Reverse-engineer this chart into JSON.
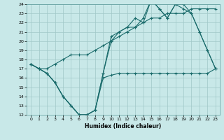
{
  "xlabel": "Humidex (Indice chaleur)",
  "xlim": [
    0,
    23
  ],
  "ylim": [
    12,
    24
  ],
  "yticks": [
    12,
    13,
    14,
    15,
    16,
    17,
    18,
    19,
    20,
    21,
    22,
    23,
    24
  ],
  "xticks": [
    0,
    1,
    2,
    3,
    4,
    5,
    6,
    7,
    8,
    9,
    10,
    11,
    12,
    13,
    14,
    15,
    16,
    17,
    18,
    19,
    20,
    21,
    22,
    23
  ],
  "bg_color": "#c8e8e8",
  "line_color": "#1a6b6b",
  "grid_color": "#a0c8c8",
  "line1_x": [
    0,
    1,
    2,
    3,
    4,
    5,
    6,
    7,
    8,
    9,
    10,
    11,
    12,
    13,
    14,
    15,
    16,
    17,
    18,
    19,
    20,
    21,
    22,
    23
  ],
  "line1_y": [
    17.5,
    17.0,
    16.5,
    15.5,
    14.0,
    13.0,
    12.0,
    12.0,
    12.5,
    16.0,
    16.3,
    16.5,
    16.5,
    16.5,
    16.5,
    16.5,
    16.5,
    16.5,
    16.5,
    16.5,
    16.5,
    16.5,
    16.5,
    17.0
  ],
  "line2_x": [
    0,
    1,
    2,
    3,
    4,
    5,
    6,
    7,
    8,
    9,
    10,
    11,
    12,
    13,
    14,
    15,
    16,
    17,
    18,
    19,
    20,
    21,
    22,
    23
  ],
  "line2_y": [
    17.5,
    17.0,
    16.5,
    15.5,
    14.0,
    13.0,
    12.0,
    12.0,
    12.5,
    16.5,
    20.5,
    21.0,
    21.5,
    22.5,
    22.0,
    24.5,
    23.5,
    22.5,
    24.0,
    23.5,
    23.0,
    21.0,
    19.0,
    17.0
  ],
  "line3_x": [
    0,
    1,
    2,
    3,
    4,
    5,
    6,
    7,
    8,
    9,
    10,
    11,
    12,
    13,
    14,
    15,
    16,
    17,
    18,
    19,
    20,
    21,
    22,
    23
  ],
  "line3_y": [
    17.5,
    17.0,
    16.5,
    15.5,
    14.0,
    13.0,
    12.0,
    12.0,
    12.5,
    16.5,
    20.0,
    21.0,
    21.5,
    21.5,
    22.5,
    24.5,
    23.5,
    22.5,
    24.0,
    24.0,
    23.0,
    21.0,
    19.0,
    17.0
  ],
  "line4_x": [
    0,
    1,
    2,
    3,
    4,
    5,
    6,
    7,
    8,
    9,
    10,
    11,
    12,
    13,
    14,
    15,
    16,
    17,
    18,
    19,
    20,
    21,
    22,
    23
  ],
  "line4_y": [
    17.5,
    17.0,
    17.0,
    17.5,
    18.0,
    18.5,
    18.5,
    18.5,
    19.0,
    19.5,
    20.0,
    20.5,
    21.0,
    21.5,
    22.0,
    22.5,
    22.5,
    23.0,
    23.0,
    23.0,
    23.5,
    23.5,
    23.5,
    23.5
  ]
}
